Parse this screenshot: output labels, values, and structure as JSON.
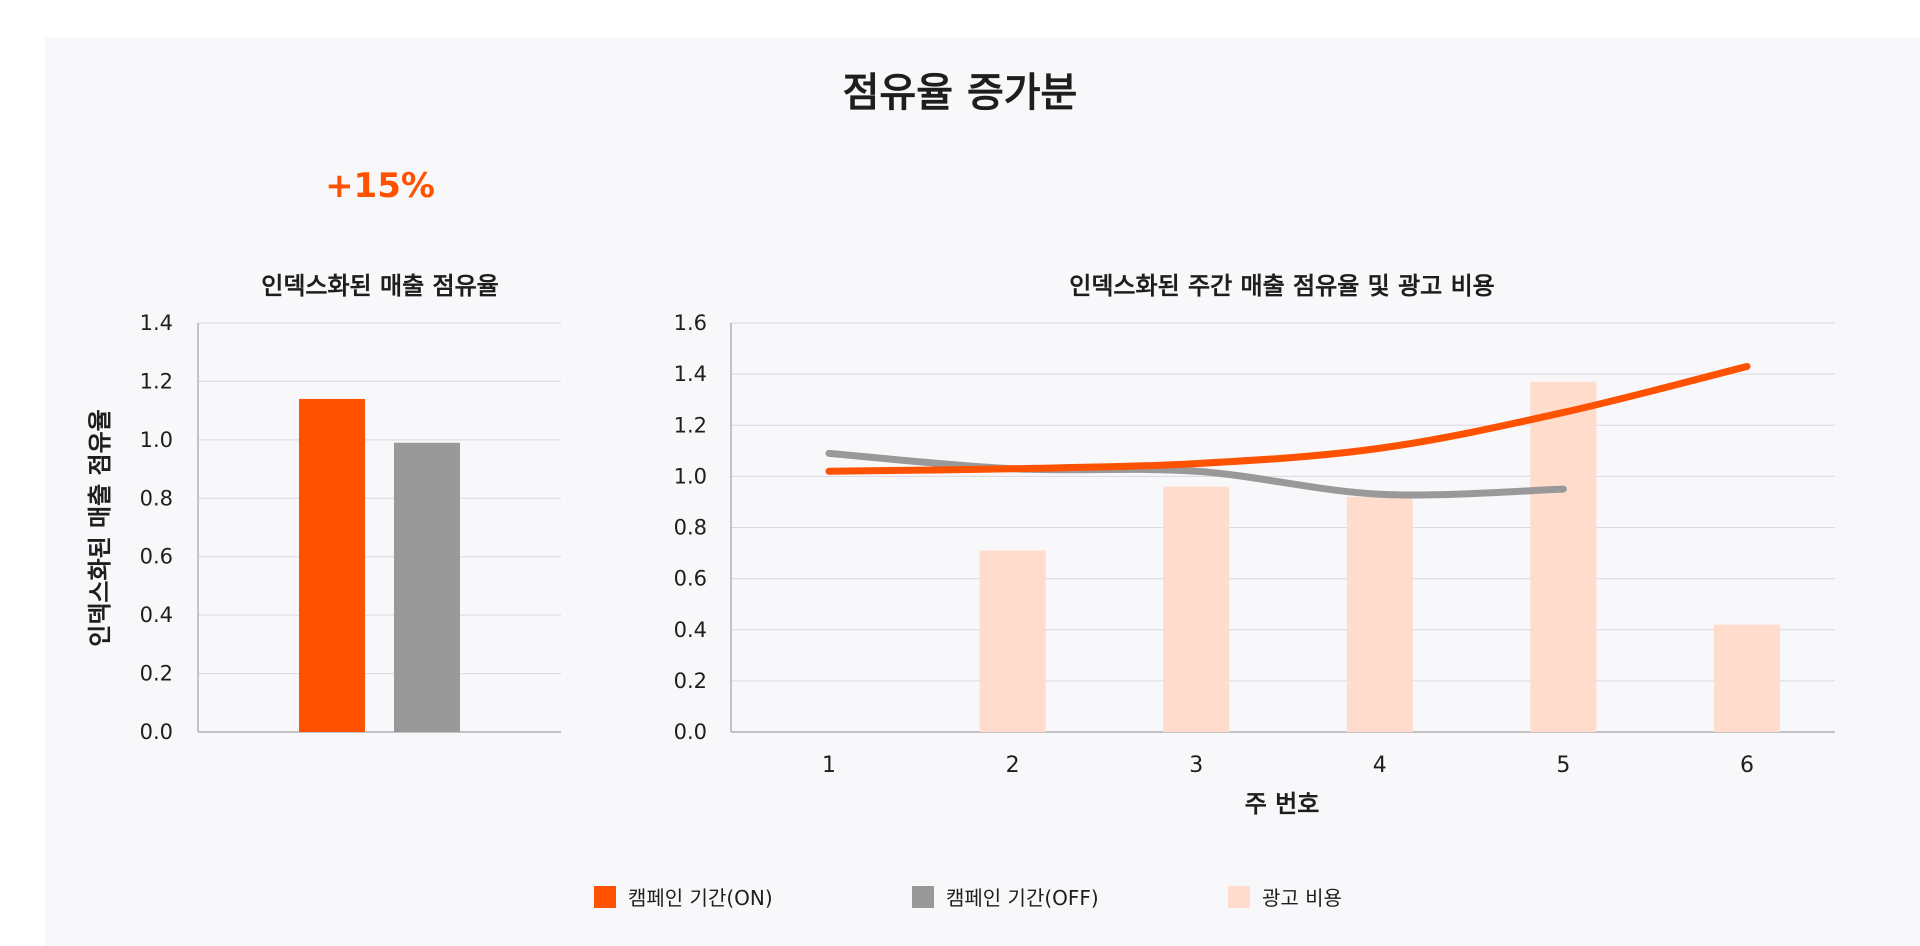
{
  "title": "점유율 증가분",
  "delta_label": "+15%",
  "colors": {
    "on": "#ff5200",
    "off": "#999999",
    "ad": "#ffdccc",
    "grid": "#d9d9de",
    "axis": "#a0a0a8"
  },
  "legend": [
    {
      "label": "캠페인 기간(ON)",
      "color": "#ff5200"
    },
    {
      "label": "캠페인 기간(OFF)",
      "color": "#999999"
    },
    {
      "label": "광고 비용",
      "color": "#ffdccc"
    }
  ],
  "chart_data": [
    {
      "type": "bar",
      "title": "인덱스화된 매출 점유율",
      "xlabel": "",
      "ylabel": "인덱스화된 매출 점유율",
      "ylim": [
        0,
        1.4
      ],
      "yticks": [
        "0.0",
        "0.2",
        "0.4",
        "0.6",
        "0.8",
        "1.0",
        "1.2",
        "1.4"
      ],
      "grid": true,
      "categories": [
        "캠페인 기간(ON)",
        "캠페인 기간(OFF)"
      ],
      "values": [
        1.14,
        0.99
      ]
    },
    {
      "type": "line",
      "title": "인덱스화된 주간 매출 점유율 및 광고 비용",
      "xlabel": "주 번호",
      "ylabel": "",
      "ylim": [
        0,
        1.6
      ],
      "yticks": [
        "0.0",
        "0.2",
        "0.4",
        "0.6",
        "0.8",
        "1.0",
        "1.2",
        "1.4",
        "1.6"
      ],
      "grid": true,
      "x": [
        "1",
        "2",
        "3",
        "4",
        "5",
        "6"
      ],
      "bars": {
        "name": "광고 비용",
        "x": [
          2,
          3,
          4,
          5,
          6
        ],
        "values": [
          0.71,
          0.96,
          0.92,
          1.37,
          0.42
        ]
      },
      "series": [
        {
          "name": "캠페인 기간(ON)",
          "x": [
            1,
            2,
            3,
            4,
            5,
            6
          ],
          "values": [
            1.02,
            1.03,
            1.05,
            1.11,
            1.25,
            1.43
          ]
        },
        {
          "name": "캠페인 기간(OFF)",
          "x": [
            1,
            2,
            3,
            4,
            5
          ],
          "values": [
            1.09,
            1.03,
            1.02,
            0.93,
            0.95
          ]
        }
      ],
      "legend_position": "bottom"
    }
  ]
}
